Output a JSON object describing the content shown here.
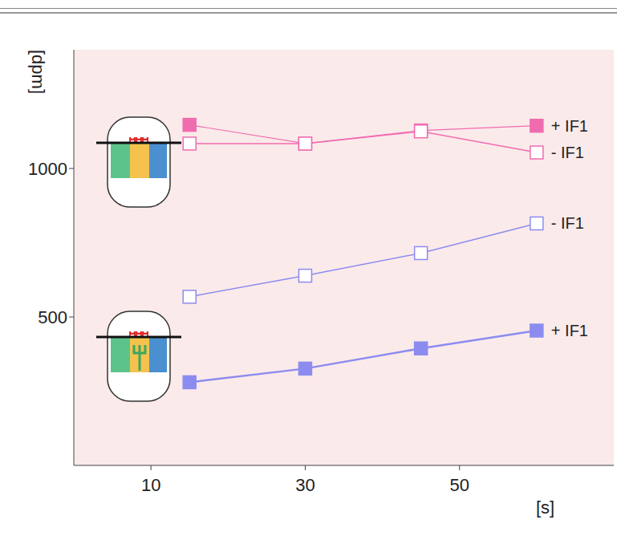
{
  "chart_data": {
    "type": "line",
    "y_label": "[dpm]",
    "x_label": "[s]",
    "xlim": [
      0,
      70
    ],
    "xticks": [
      10,
      30,
      50
    ],
    "ylim": [
      0,
      1400
    ],
    "yticks": [
      500,
      1000
    ],
    "grid": false,
    "x": [
      15,
      30,
      45,
      60
    ],
    "series": [
      {
        "name": "+ IF1",
        "color": "#f06cb0",
        "marker": "filled-square",
        "line_style": "solid",
        "values": [
          1147,
          1084,
          1128,
          1144
        ]
      },
      {
        "name": "- IF1",
        "color": "#f06cb0",
        "marker": "open-square",
        "line_style": "solid",
        "values": [
          1084,
          1084,
          1125,
          1054
        ]
      },
      {
        "name": "- IF1",
        "color": "#8c8cf0",
        "marker": "open-square",
        "line_style": "solid",
        "values": [
          568,
          639,
          715,
          815
        ]
      },
      {
        "name": "+ IF1",
        "color": "#8c8cf0",
        "marker": "filled-square",
        "line_style": "solid",
        "values": [
          280,
          326,
          394,
          454
        ]
      }
    ]
  }
}
